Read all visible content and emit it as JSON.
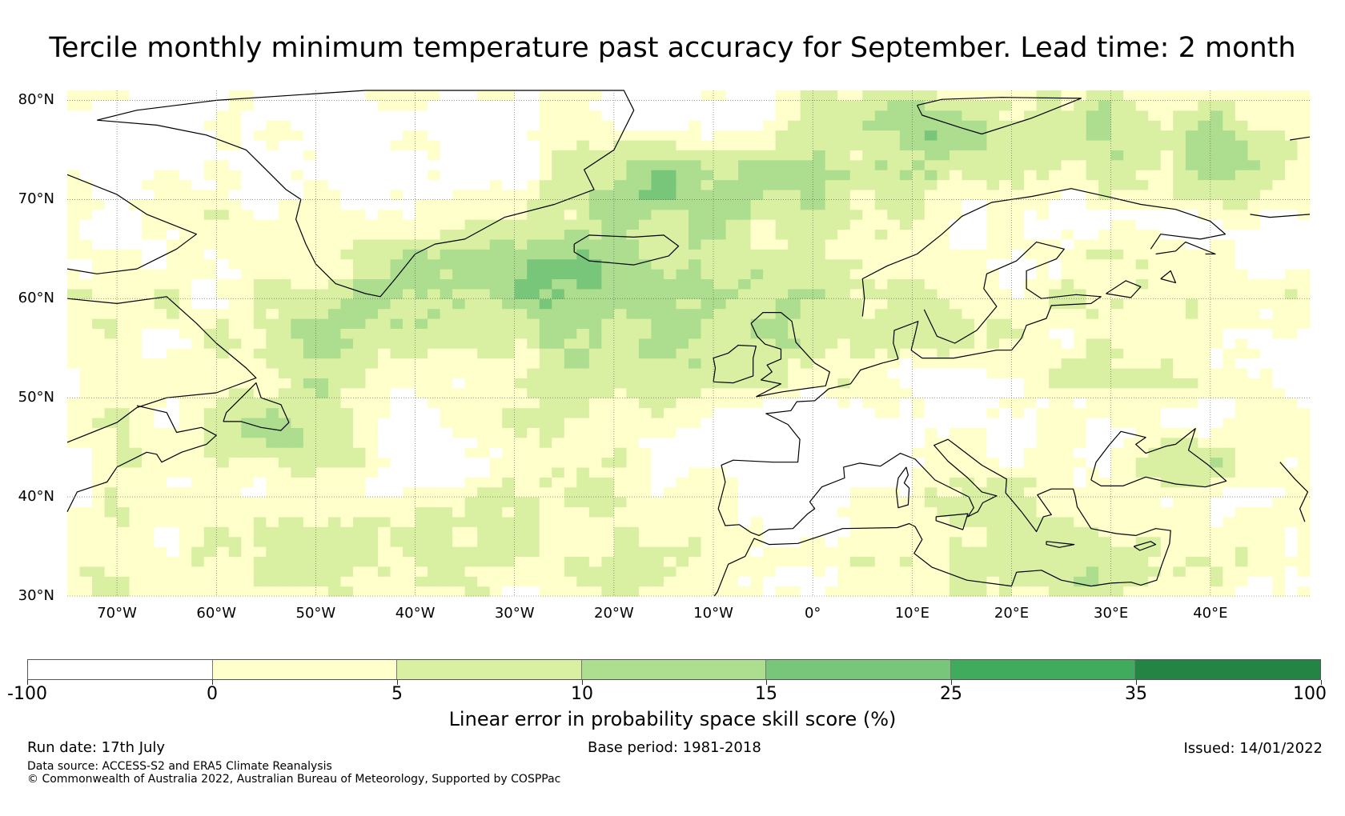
{
  "title": "Tercile monthly minimum temperature past accuracy for September. Lead time: 2 month",
  "map": {
    "lon_range": [
      -75,
      50
    ],
    "lat_range": [
      30,
      81
    ],
    "lat_labels": [
      "80°N",
      "70°N",
      "60°N",
      "50°N",
      "40°N",
      "30°N"
    ],
    "lat_values": [
      80,
      70,
      60,
      50,
      40,
      30
    ],
    "lon_labels": [
      "70°W",
      "60°W",
      "50°W",
      "40°W",
      "30°W",
      "20°W",
      "10°W",
      "0°",
      "10°E",
      "20°E",
      "30°E",
      "40°E"
    ],
    "lon_values": [
      -70,
      -60,
      -50,
      -40,
      -30,
      -20,
      -10,
      0,
      10,
      20,
      30,
      40
    ],
    "coastline_color": "#000000",
    "gridline_color": "#555555"
  },
  "colorbar": {
    "bounds": [
      "-100",
      "0",
      "5",
      "10",
      "15",
      "25",
      "35",
      "100"
    ],
    "colors": [
      "#ffffff",
      "#ffffcc",
      "#d9f0a3",
      "#addd8e",
      "#78c679",
      "#41ab5d",
      "#238443"
    ],
    "caption": "Linear error in probability space skill score (%)"
  },
  "footer": {
    "run_date": "Run date: 17th July",
    "base_period": "Base period: 1981-2018",
    "issued": "Issued: 14/01/2022",
    "data_source": "Data source: ACCESS-S2 and ERA5 Climate Reanalysis",
    "copyright": "© Commonwealth of Australia 2022, Australian Bureau of Meteorology, Supported by COSPPac"
  }
}
